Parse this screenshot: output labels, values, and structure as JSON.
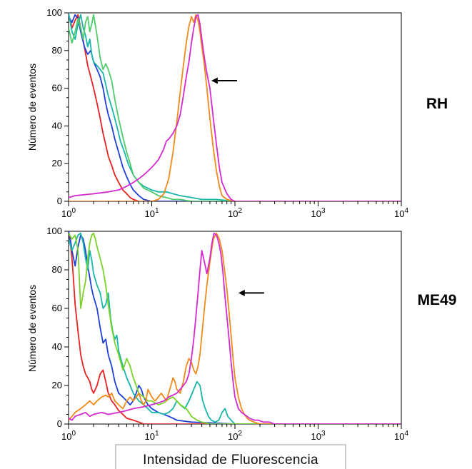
{
  "xlabel": "Intensidad de Fluorescencia",
  "chart_data": [
    {
      "type": "line",
      "panel_label": "RH",
      "ylabel": "Número de eventos",
      "x_scale": "log",
      "xlim": [
        1,
        10000
      ],
      "ylim": [
        0,
        100
      ],
      "yticks": [
        "0",
        "20",
        "40",
        "60",
        "80",
        "100"
      ],
      "xticks": [
        {
          "base": "10",
          "exp": "0"
        },
        {
          "base": "10",
          "exp": "1"
        },
        {
          "base": "10",
          "exp": "2"
        },
        {
          "base": "10",
          "exp": "3"
        },
        {
          "base": "10",
          "exp": "4"
        }
      ],
      "annotation": {
        "type": "arrow",
        "x": 52,
        "y": 64
      },
      "series": [
        {
          "color": "#e8221f",
          "x": [
            1,
            1.05,
            1.1,
            1.2,
            1.3,
            1.4,
            1.55,
            1.7,
            1.85,
            2,
            2.2,
            2.4,
            2.6,
            2.8,
            3,
            3.3,
            3.6,
            4,
            4.5,
            5,
            5.5,
            6,
            7,
            8,
            10,
            20,
            100,
            10000
          ],
          "y": [
            99,
            96,
            92,
            96,
            99,
            92,
            82,
            72,
            66,
            60,
            52,
            44,
            36,
            30,
            24,
            19,
            14,
            10,
            6,
            4,
            2,
            1,
            0,
            0,
            0,
            0,
            0,
            0
          ]
        },
        {
          "color": "#1e3fd8",
          "x": [
            1,
            1.1,
            1.2,
            1.3,
            1.4,
            1.55,
            1.7,
            1.85,
            2,
            2.2,
            2.4,
            2.6,
            2.8,
            3,
            3.3,
            3.6,
            4,
            4.5,
            5,
            5.5,
            6,
            7,
            8,
            10,
            20,
            100,
            10000
          ],
          "y": [
            98,
            95,
            99,
            97,
            90,
            82,
            78,
            80,
            74,
            70,
            66,
            60,
            52,
            46,
            40,
            33,
            26,
            18,
            13,
            9,
            6,
            3,
            1,
            0,
            0,
            0,
            0
          ]
        },
        {
          "color": "#17b5a8",
          "x": [
            1,
            1.05,
            1.1,
            1.2,
            1.3,
            1.4,
            1.5,
            1.6,
            1.7,
            1.8,
            1.9,
            2,
            2.2,
            2.4,
            2.6,
            2.8,
            3,
            3.4,
            3.8,
            4.2,
            4.7,
            5.2,
            6,
            7,
            8,
            10,
            12,
            15,
            18,
            22,
            30,
            40,
            60,
            100,
            10000
          ],
          "y": [
            100,
            95,
            90,
            86,
            94,
            99,
            92,
            88,
            82,
            86,
            78,
            74,
            72,
            70,
            68,
            62,
            56,
            48,
            40,
            32,
            26,
            20,
            14,
            10,
            8,
            6,
            5,
            5,
            4,
            3,
            2,
            1,
            1,
            0,
            0
          ]
        },
        {
          "color": "#4ecb6a",
          "x": [
            1,
            1.1,
            1.2,
            1.3,
            1.4,
            1.5,
            1.6,
            1.7,
            1.8,
            1.9,
            2,
            2.2,
            2.4,
            2.6,
            2.8,
            3,
            3.3,
            3.6,
            4,
            4.5,
            5,
            5.5,
            6,
            7,
            8,
            10,
            12,
            15,
            18,
            22,
            30,
            40,
            100,
            10000
          ],
          "y": [
            92,
            84,
            90,
            97,
            92,
            86,
            95,
            98,
            90,
            94,
            99,
            88,
            76,
            70,
            73,
            70,
            64,
            54,
            44,
            34,
            26,
            20,
            14,
            10,
            7,
            5,
            3,
            2,
            1,
            1,
            0,
            0,
            0,
            0
          ]
        },
        {
          "color": "#f08a1a",
          "x": [
            1,
            2,
            5,
            10,
            12,
            14,
            16,
            18,
            20,
            22,
            24,
            26,
            28,
            30,
            32,
            34,
            36,
            38,
            40,
            43,
            46,
            50,
            55,
            60,
            65,
            70,
            80,
            100,
            10000
          ],
          "y": [
            0,
            0,
            0,
            0,
            1,
            4,
            12,
            26,
            42,
            58,
            72,
            84,
            93,
            98,
            95,
            99,
            96,
            90,
            82,
            72,
            60,
            44,
            28,
            16,
            8,
            3,
            1,
            0,
            0
          ]
        },
        {
          "color": "#d42ad0",
          "x": [
            1,
            1.2,
            2,
            3,
            4,
            5,
            6,
            7,
            8,
            9,
            10,
            11,
            12,
            13,
            14,
            15,
            16,
            18,
            20,
            22,
            24,
            26,
            28,
            30,
            32,
            34,
            36,
            38,
            40,
            43,
            46,
            50,
            55,
            60,
            65,
            70,
            80,
            90,
            100,
            10000
          ],
          "y": [
            2,
            3,
            4,
            5,
            6,
            8,
            10,
            12,
            14,
            16,
            18,
            20,
            22,
            25,
            28,
            32,
            33,
            36,
            40,
            46,
            56,
            66,
            74,
            84,
            92,
            98,
            99,
            94,
            86,
            76,
            68,
            60,
            44,
            30,
            18,
            10,
            4,
            1,
            0,
            0
          ]
        }
      ]
    },
    {
      "type": "line",
      "panel_label": "ME49",
      "ylabel": "Número de eventos",
      "x_scale": "log",
      "xlim": [
        1,
        10000
      ],
      "ylim": [
        0,
        100
      ],
      "yticks": [
        "0",
        "20",
        "40",
        "60",
        "80",
        "100"
      ],
      "xticks": [
        {
          "base": "10",
          "exp": "0"
        },
        {
          "base": "10",
          "exp": "1"
        },
        {
          "base": "10",
          "exp": "2"
        },
        {
          "base": "10",
          "exp": "3"
        },
        {
          "base": "10",
          "exp": "4"
        }
      ],
      "annotation": {
        "type": "arrow",
        "x": 110,
        "y": 68
      },
      "series": [
        {
          "color": "#e8221f",
          "x": [
            1,
            1.05,
            1.1,
            1.15,
            1.2,
            1.3,
            1.4,
            1.5,
            1.6,
            1.7,
            1.8,
            1.9,
            2,
            2.2,
            2.4,
            2.6,
            2.8,
            3,
            3.3,
            3.6,
            4,
            4.5,
            5,
            6,
            7,
            8,
            10,
            20,
            100,
            10000
          ],
          "y": [
            100,
            94,
            86,
            74,
            62,
            48,
            36,
            30,
            26,
            24,
            22,
            18,
            16,
            20,
            26,
            28,
            22,
            16,
            12,
            10,
            7,
            5,
            3,
            2,
            1,
            0,
            0,
            0,
            0,
            0
          ]
        },
        {
          "color": "#1e3fd8",
          "x": [
            1,
            1.05,
            1.1,
            1.2,
            1.3,
            1.4,
            1.5,
            1.6,
            1.7,
            1.8,
            1.9,
            2,
            2.2,
            2.4,
            2.6,
            2.8,
            3,
            3.3,
            3.6,
            4,
            4.5,
            5,
            5.5,
            6,
            6.5,
            7,
            7.5,
            8,
            9,
            10,
            12,
            14,
            16,
            18,
            20,
            30,
            100,
            10000
          ],
          "y": [
            100,
            96,
            90,
            82,
            92,
            98,
            96,
            90,
            82,
            76,
            70,
            66,
            60,
            50,
            42,
            44,
            36,
            30,
            22,
            16,
            14,
            12,
            10,
            12,
            16,
            20,
            18,
            14,
            10,
            8,
            6,
            5,
            4,
            3,
            2,
            1,
            0,
            0
          ]
        },
        {
          "color": "#17b5a8",
          "x": [
            1,
            1.1,
            1.2,
            1.3,
            1.4,
            1.5,
            1.6,
            1.7,
            1.8,
            1.9,
            2,
            2.2,
            2.4,
            2.6,
            2.8,
            3,
            3.2,
            3.4,
            3.6,
            3.8,
            4,
            4.5,
            5,
            5.5,
            6,
            7,
            8,
            9,
            10,
            12,
            14,
            16,
            18,
            20,
            22,
            25,
            28,
            32,
            35,
            38,
            41,
            44,
            48,
            52,
            58,
            64,
            70,
            76,
            82,
            90,
            100,
            110,
            10000
          ],
          "y": [
            96,
            90,
            94,
            98,
            99,
            94,
            86,
            80,
            90,
            85,
            78,
            72,
            68,
            60,
            62,
            68,
            55,
            48,
            44,
            46,
            38,
            30,
            24,
            20,
            16,
            12,
            10,
            8,
            6,
            6,
            5,
            6,
            8,
            12,
            10,
            8,
            12,
            18,
            22,
            20,
            12,
            8,
            4,
            2,
            1,
            2,
            6,
            8,
            4,
            2,
            0,
            0,
            0
          ]
        },
        {
          "color": "#7ad12a",
          "x": [
            1,
            1.1,
            1.2,
            1.3,
            1.4,
            1.5,
            1.6,
            1.7,
            1.8,
            1.9,
            2,
            2.1,
            2.2,
            2.4,
            2.6,
            2.8,
            3,
            3.3,
            3.6,
            4,
            4.5,
            5,
            5.5,
            6,
            6.5,
            7,
            8,
            9,
            10,
            12,
            14,
            16,
            18,
            20,
            22,
            24,
            26,
            28,
            30,
            35,
            40,
            50,
            10000
          ],
          "y": [
            99,
            96,
            98,
            90,
            60,
            68,
            74,
            86,
            94,
            98,
            99,
            96,
            92,
            86,
            80,
            72,
            62,
            50,
            42,
            36,
            28,
            34,
            30,
            24,
            20,
            16,
            14,
            12,
            12,
            10,
            11,
            13,
            14,
            12,
            10,
            9,
            8,
            6,
            4,
            2,
            1,
            0,
            0
          ]
        },
        {
          "color": "#f08a1a",
          "x": [
            1,
            1.1,
            1.2,
            1.4,
            1.6,
            1.8,
            2,
            2.2,
            2.5,
            2.8,
            3,
            3.3,
            3.6,
            4,
            4.5,
            5,
            5.5,
            6,
            6.5,
            7,
            7.5,
            8,
            8.5,
            9,
            9.5,
            10,
            11,
            12,
            13,
            14,
            15,
            16,
            17,
            18,
            19,
            20,
            22,
            24,
            26,
            28,
            30,
            32,
            34,
            36,
            38,
            40,
            43,
            46,
            50,
            55,
            60,
            65,
            70,
            75,
            80,
            85,
            90,
            95,
            100,
            110,
            120,
            130,
            140,
            150,
            170,
            200,
            250,
            10000
          ],
          "y": [
            2,
            4,
            6,
            8,
            10,
            12,
            10,
            12,
            14,
            15,
            14,
            16,
            12,
            10,
            8,
            12,
            14,
            12,
            14,
            16,
            12,
            10,
            12,
            18,
            16,
            14,
            12,
            14,
            16,
            14,
            12,
            16,
            20,
            24,
            22,
            18,
            16,
            22,
            30,
            34,
            32,
            28,
            26,
            30,
            36,
            46,
            60,
            72,
            84,
            96,
            99,
            96,
            90,
            80,
            70,
            58,
            46,
            34,
            24,
            14,
            8,
            5,
            3,
            2,
            1,
            0,
            0,
            0
          ]
        },
        {
          "color": "#d42ad0",
          "x": [
            1,
            1.1,
            1.2,
            1.4,
            1.6,
            1.8,
            2,
            2.5,
            3,
            4,
            5,
            6,
            8,
            10,
            12,
            14,
            16,
            18,
            20,
            22,
            24,
            26,
            28,
            30,
            32,
            34,
            36,
            38,
            40,
            43,
            46,
            50,
            53,
            56,
            60,
            64,
            68,
            72,
            76,
            80,
            85,
            90,
            95,
            100,
            110,
            120,
            130,
            140,
            150,
            170,
            190,
            220,
            260,
            300,
            10000
          ],
          "y": [
            3,
            2,
            4,
            5,
            6,
            4,
            5,
            6,
            5,
            6,
            7,
            8,
            9,
            10,
            11,
            12,
            14,
            15,
            16,
            18,
            20,
            22,
            26,
            34,
            44,
            56,
            68,
            80,
            90,
            84,
            78,
            86,
            94,
            99,
            98,
            94,
            88,
            78,
            66,
            56,
            44,
            32,
            22,
            14,
            8,
            6,
            5,
            4,
            3,
            2,
            2,
            1,
            1,
            0,
            0
          ]
        }
      ]
    }
  ]
}
